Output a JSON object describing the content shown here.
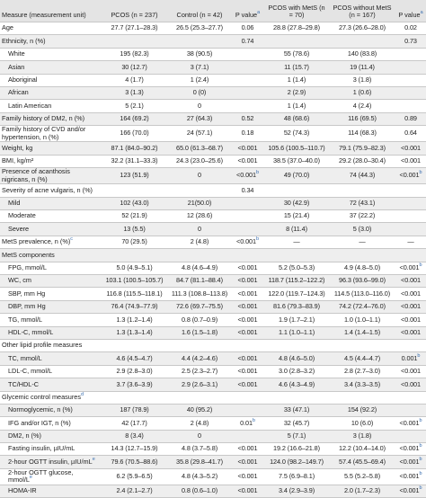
{
  "table": {
    "header": [
      "Measure (measurement unit)",
      "PCOS (n = 237)",
      "Control (n = 42)",
      {
        "text": "P value",
        "sup": "a"
      },
      "PCOS with MetS (n = 70)",
      "PCOS without MetS (n = 167)",
      {
        "text": "P value",
        "sup": "a"
      }
    ],
    "rows": [
      {
        "label": "Age",
        "cells": [
          "27.7 (27.1–28.3)",
          "26.5 (25.3–27.7)",
          "0.06",
          "28.8 (27.8–29.8)",
          "27.3 (26.6–28.0)",
          "0.02"
        ]
      },
      {
        "label": "Ethnicity, n (%)",
        "cells": [
          "",
          "",
          "0.74",
          "",
          "",
          "0.73"
        ]
      },
      {
        "label": "White",
        "sub": true,
        "cells": [
          "195 (82.3)",
          "38 (90.5)",
          "",
          "55 (78.6)",
          "140 (83.8)",
          ""
        ]
      },
      {
        "label": "Asian",
        "sub": true,
        "cells": [
          "30 (12.7)",
          "3 (7.1)",
          "",
          "11 (15.7)",
          "19 (11.4)",
          ""
        ]
      },
      {
        "label": "Aboriginal",
        "sub": true,
        "cells": [
          "4 (1.7)",
          "1 (2.4)",
          "",
          "1 (1.4)",
          "3 (1.8)",
          ""
        ]
      },
      {
        "label": "African",
        "sub": true,
        "cells": [
          "3 (1.3)",
          "0 (0)",
          "",
          "2 (2.9)",
          "1 (0.6)",
          ""
        ]
      },
      {
        "label": "Latin American",
        "sub": true,
        "cells": [
          "5 (2.1)",
          "0",
          "",
          "1 (1.4)",
          "4 (2.4)",
          ""
        ]
      },
      {
        "label": "Family history of DM2, n (%)",
        "cells": [
          "164 (69.2)",
          "27 (64.3)",
          "0.52",
          "48 (68.6)",
          "116 (69.5)",
          "0.89"
        ]
      },
      {
        "label": "Family history of CVD and/or hypertension, n (%)",
        "cells": [
          "166 (70.0)",
          "24 (57.1)",
          "0.18",
          "52 (74.3)",
          "114 (68.3)",
          "0.64"
        ]
      },
      {
        "label": "Weight, kg",
        "cells": [
          "87.1 (84.0–90.2)",
          "65.0 (61.3–68.7)",
          "<0.001",
          "105.6 (100.5–110.7)",
          "79.1 (75.9–82.3)",
          "<0.001"
        ]
      },
      {
        "label": "BMI, kg/m²",
        "cells": [
          "32.2 (31.1–33.3)",
          "24.3 (23.0–25.6)",
          "<0.001",
          "38.5 (37.0–40.0)",
          "29.2 (28.0–30.4)",
          "<0.001"
        ]
      },
      {
        "label": "Presence of acanthosis nigricans, n (%)",
        "cells": [
          "123 (51.9)",
          "0",
          {
            "text": "<0.001",
            "sup": "b"
          },
          "49 (70.0)",
          "74 (44.3)",
          {
            "text": "<0.001",
            "sup": "b"
          }
        ]
      },
      {
        "label": "Severity of acne vulgaris, n (%)",
        "cells": [
          "",
          "",
          "0.34",
          "",
          "",
          ""
        ]
      },
      {
        "label": "Mild",
        "sub": true,
        "cells": [
          "102 (43.0)",
          "21(50.0)",
          "",
          "30 (42.9)",
          "72 (43.1)",
          ""
        ]
      },
      {
        "label": "Moderate",
        "sub": true,
        "cells": [
          "52 (21.9)",
          "12 (28.6)",
          "",
          "15 (21.4)",
          "37 (22.2)",
          ""
        ]
      },
      {
        "label": "Severe",
        "sub": true,
        "cells": [
          "13 (5.5)",
          "0",
          "",
          "8 (11.4)",
          "5 (3.0)",
          ""
        ]
      },
      {
        "label": {
          "text": "MetS prevalence, n (%)",
          "sup": "c"
        },
        "cells": [
          "70 (29.5)",
          "2 (4.8)",
          {
            "text": "<0.001",
            "sup": "b"
          },
          "—",
          "—",
          "—"
        ]
      },
      {
        "label": "MetS components",
        "cells": [
          "",
          "",
          "",
          "",
          "",
          ""
        ]
      },
      {
        "label": "FPG, mmol/L",
        "sub": true,
        "cells": [
          "5.0 (4.9–5.1)",
          "4.8 (4.6–4.9)",
          "<0.001",
          "5.2 (5.0–5.3)",
          "4.9 (4.8–5.0)",
          {
            "text": "<0.001",
            "sup": "b"
          }
        ]
      },
      {
        "label": "WC, cm",
        "sub": true,
        "cells": [
          "103.1 (100.5–105.7)",
          "84.7 (81.1–88.4)",
          "<0.001",
          "118.7 (115.2–122.2)",
          "96.3 (93.6–99.0)",
          "<0.001"
        ]
      },
      {
        "label": "SBP, mm Hg",
        "sub": true,
        "cells": [
          "116.8 (115.5–118.1)",
          "111.3 (108.8–113.8)",
          "<0.001",
          "122.0 (119.7–124.3)",
          "114.5 (113.0–116.0)",
          "<0.001"
        ]
      },
      {
        "label": "DBP, mm Hg",
        "sub": true,
        "cells": [
          "76.4 (74.9–77.9)",
          "72.6 (69.7–75.5)",
          "<0.001",
          "81.6 (79.3–83.9)",
          "74.2 (72.4–76.0)",
          "<0.001"
        ]
      },
      {
        "label": "TG, mmol/L",
        "sub": true,
        "cells": [
          "1.3 (1.2–1.4)",
          "0.8 (0.7–0.9)",
          "<0.001",
          "1.9 (1.7–2.1)",
          "1.0 (1.0–1.1)",
          "<0.001"
        ]
      },
      {
        "label": "HDL-C, mmol/L",
        "sub": true,
        "cells": [
          "1.3 (1.3–1.4)",
          "1.6 (1.5–1.8)",
          "<0.001",
          "1.1 (1.0–1.1)",
          "1.4 (1.4–1.5)",
          "<0.001"
        ]
      },
      {
        "label": "Other lipid profile measures",
        "cells": [
          "",
          "",
          "",
          "",
          "",
          ""
        ]
      },
      {
        "label": "TC, mmol/L",
        "sub": true,
        "cells": [
          "4.6 (4.5–4.7)",
          "4.4 (4.2–4.6)",
          "<0.001",
          "4.8 (4.6–5.0)",
          "4.5 (4.4–4.7)",
          {
            "text": "0.001",
            "sup": "b"
          }
        ]
      },
      {
        "label": "LDL-C, mmol/L",
        "sub": true,
        "cells": [
          "2.9 (2.8–3.0)",
          "2.5 (2.3–2.7)",
          "<0.001",
          "3.0 (2.8–3.2)",
          "2.8 (2.7–3.0)",
          "<0.001"
        ]
      },
      {
        "label": "TC/HDL-C",
        "sub": true,
        "cells": [
          "3.7 (3.6–3.9)",
          "2.9 (2.6–3.1)",
          "<0.001",
          "4.6 (4.3–4.9)",
          "3.4 (3.3–3.5)",
          "<0.001"
        ]
      },
      {
        "label": {
          "text": "Glycemic control measures",
          "sup": "d"
        },
        "cells": [
          "",
          "",
          "",
          "",
          "",
          ""
        ]
      },
      {
        "label": "Normoglycemic, n (%)",
        "sub": true,
        "cells": [
          "187 (78.9)",
          "40 (95.2)",
          "",
          "33 (47.1)",
          "154 (92.2)",
          ""
        ]
      },
      {
        "label": "IFG and/or IGT, n (%)",
        "sub": true,
        "cells": [
          "42 (17.7)",
          "2 (4.8)",
          {
            "text": "0.01",
            "sup": "b"
          },
          "32 (45.7)",
          "10 (6.0)",
          {
            "text": "<0.001",
            "sup": "b"
          }
        ]
      },
      {
        "label": "DM2, n (%)",
        "sub": true,
        "cells": [
          "8 (3.4)",
          "0",
          "",
          "5 (7.1)",
          "3 (1.8)",
          ""
        ]
      },
      {
        "label": "Fasting insulin, µIU/mL",
        "sub": true,
        "cells": [
          "14.3 (12.7–15.9)",
          "4.8 (3.7–5.8)",
          "<0.001",
          "19.2 (16.6–21.8)",
          "12.2 (10.4–14.0)",
          {
            "text": "<0.001",
            "sup": "b"
          }
        ]
      },
      {
        "label": {
          "text": "2-hour OGTT insulin, µIU/mL",
          "sup": "e"
        },
        "sub": true,
        "cells": [
          "79.6 (70.5–88.6)",
          "35.8 (29.8–41.7)",
          "<0.001",
          "124.0 (98.2–149.7)",
          "57.4 (45.5–69.4)",
          {
            "text": "<0.001",
            "sup": "b"
          }
        ]
      },
      {
        "label": {
          "text": "2-hour OGTT glucose, mmol/L",
          "sup": "e"
        },
        "sub": true,
        "cells": [
          "6.2 (5.9–6.5)",
          "4.8 (4.3–5.2)",
          "<0.001",
          "7.5 (6.9–8.1)",
          "5.5 (5.2–5.8)",
          {
            "text": "<0.001",
            "sup": "b"
          }
        ]
      },
      {
        "label": "HOMA-IR",
        "sub": true,
        "cells": [
          "2.4 (2.1–2.7)",
          "0.8 (0.6–1.0)",
          "<0.001",
          "3.4 (2.9–3.9)",
          "2.0 (1.7–2.3)",
          {
            "text": "<0.001",
            "sup": "b"
          }
        ]
      }
    ]
  }
}
